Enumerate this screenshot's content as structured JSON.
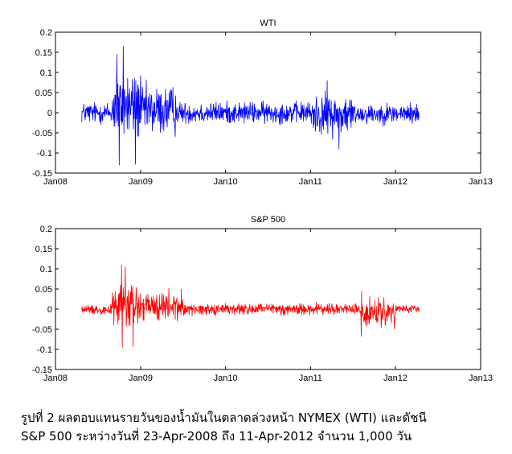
{
  "caption": {
    "line1": "รูปที่ 2  ผลตอบแทนรายวันของน้ำมันในตลาดล่วงหน้า NYMEX (WTI) และดัชนี",
    "line2": "S&P 500 ระหว่างวันที่ 23-Apr-2008 ถึง 11-Apr-2012 จำนวน 1,000 วัน"
  },
  "chart_data": [
    {
      "type": "line",
      "title": "WTI",
      "xlabel": "",
      "ylabel": "",
      "x_start": "2008-04-23",
      "x_end": "2012-04-11",
      "n_points": 1000,
      "xlim": [
        "2008-01-01",
        "2013-01-01"
      ],
      "ylim": [
        -0.15,
        0.2
      ],
      "x_ticks": [
        "Jan08",
        "Jan09",
        "Jan10",
        "Jan11",
        "Jan12",
        "Jan13"
      ],
      "y_ticks": [
        "-0.15",
        "-0.1",
        "-0.05",
        "0",
        "0.05",
        "0.1",
        "0.15",
        "0.2"
      ],
      "grid": false,
      "line_color": "#0000ff",
      "series": [
        {
          "name": "",
          "shape": "daily returns — approximate reconstruction from visible envelope",
          "segments": [
            {
              "from": "2008-04-23",
              "to": "2008-08-31",
              "max": 0.045,
              "min": -0.045
            },
            {
              "from": "2008-09-01",
              "to": "2008-12-31",
              "max": 0.165,
              "min": -0.13
            },
            {
              "from": "2009-01-01",
              "to": "2009-05-31",
              "max": 0.11,
              "min": -0.1
            },
            {
              "from": "2009-06-01",
              "to": "2010-12-31",
              "max": 0.045,
              "min": -0.045
            },
            {
              "from": "2011-01-01",
              "to": "2011-06-30",
              "max": 0.08,
              "min": -0.09
            },
            {
              "from": "2011-07-01",
              "to": "2012-04-11",
              "max": 0.04,
              "min": -0.045
            }
          ],
          "extremes": [
            {
              "x": "2008-10-20",
              "y": 0.165
            },
            {
              "x": "2008-09-22",
              "y": 0.145
            },
            {
              "x": "2008-10-02",
              "y": -0.13
            },
            {
              "x": "2008-12-11",
              "y": -0.128
            },
            {
              "x": "2011-05-05",
              "y": -0.09
            },
            {
              "x": "2011-03-15",
              "y": 0.08
            }
          ]
        }
      ]
    },
    {
      "type": "line",
      "title": "S&P 500",
      "xlabel": "",
      "ylabel": "",
      "x_start": "2008-04-23",
      "x_end": "2012-04-11",
      "n_points": 1000,
      "xlim": [
        "2008-01-01",
        "2013-01-01"
      ],
      "ylim": [
        -0.15,
        0.2
      ],
      "x_ticks": [
        "Jan08",
        "Jan09",
        "Jan10",
        "Jan11",
        "Jan12",
        "Jan13"
      ],
      "y_ticks": [
        "-0.15",
        "-0.1",
        "-0.05",
        "0",
        "0.05",
        "0.1",
        "0.15",
        "0.2"
      ],
      "grid": false,
      "line_color": "#ff0000",
      "series": [
        {
          "name": "",
          "shape": "daily returns — approximate reconstruction from visible envelope",
          "segments": [
            {
              "from": "2008-04-23",
              "to": "2008-08-31",
              "max": 0.018,
              "min": -0.02
            },
            {
              "from": "2008-09-01",
              "to": "2008-12-31",
              "max": 0.11,
              "min": -0.095
            },
            {
              "from": "2009-01-01",
              "to": "2009-06-30",
              "max": 0.07,
              "min": -0.06
            },
            {
              "from": "2009-07-01",
              "to": "2011-07-31",
              "max": 0.025,
              "min": -0.025
            },
            {
              "from": "2011-08-01",
              "to": "2011-12-31",
              "max": 0.045,
              "min": -0.068
            },
            {
              "from": "2012-01-01",
              "to": "2012-04-11",
              "max": 0.015,
              "min": -0.015
            }
          ],
          "extremes": [
            {
              "x": "2008-10-13",
              "y": 0.11
            },
            {
              "x": "2008-10-28",
              "y": 0.105
            },
            {
              "x": "2008-10-15",
              "y": -0.095
            },
            {
              "x": "2008-12-01",
              "y": -0.093
            },
            {
              "x": "2011-08-08",
              "y": -0.068
            },
            {
              "x": "2011-08-09",
              "y": 0.045
            }
          ]
        }
      ]
    }
  ]
}
